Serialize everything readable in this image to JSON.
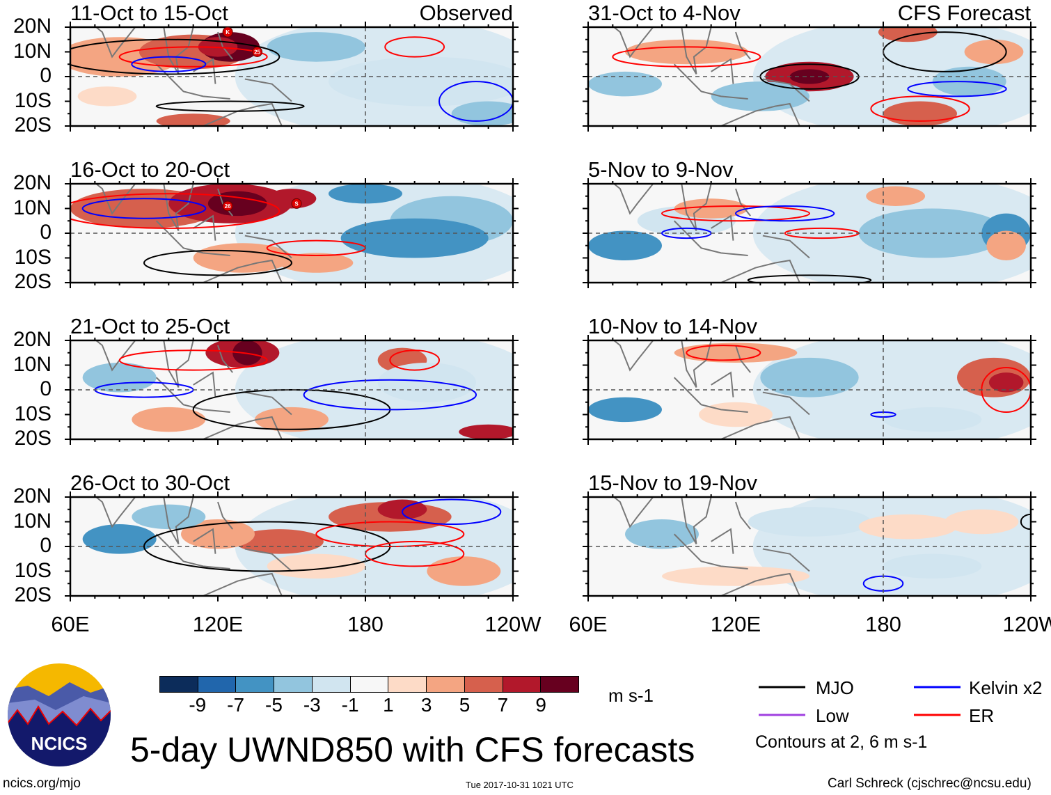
{
  "panels_left": [
    {
      "title": "11-Oct to 15-Oct",
      "tag": "Observed",
      "storms": [
        "K",
        "25"
      ]
    },
    {
      "title": "16-Oct to 20-Oct",
      "storms": [
        "26",
        "S"
      ]
    },
    {
      "title": "21-Oct to 25-Oct"
    },
    {
      "title": "26-Oct to 30-Oct"
    }
  ],
  "panels_right": [
    {
      "title": "31-Oct to 4-Nov",
      "tag": "CFS Forecast"
    },
    {
      "title": "5-Nov to 9-Nov"
    },
    {
      "title": "10-Nov to 14-Nov"
    },
    {
      "title": "15-Nov to 19-Nov"
    }
  ],
  "lat_labels": [
    "20N",
    "10N",
    "0",
    "10S",
    "20S"
  ],
  "lon_labels": [
    "60E",
    "120E",
    "180",
    "120W"
  ],
  "colorbar": {
    "ticks": [
      "-9",
      "-7",
      "-5",
      "-3",
      "-1",
      "1",
      "3",
      "5",
      "7",
      "9"
    ],
    "colors": [
      "#0c2c5a",
      "#2166ac",
      "#4393c3",
      "#92c5de",
      "#d1e5f0",
      "#f7f7f7",
      "#fddbc7",
      "#f4a582",
      "#d6604d",
      "#b2182b",
      "#67001f"
    ],
    "units": "m s-1"
  },
  "legend": {
    "items": [
      {
        "label": "MJO",
        "color": "#000000"
      },
      {
        "label": "Kelvin x2",
        "color": "#0000ff"
      },
      {
        "label": "Low",
        "color": "#a040e0"
      },
      {
        "label": "ER",
        "color": "#ff0000"
      }
    ],
    "note": "Contours at 2, 6 m s-1"
  },
  "logo": {
    "text": "NCICS"
  },
  "title": "5-day UWND850 with CFS forecasts",
  "footer": {
    "url": "ncics.org/mjo",
    "timestamp": "Tue 2017-10-31 1021 UTC",
    "credit": "Carl Schreck (cjschrec@ncsu.edu)"
  }
}
